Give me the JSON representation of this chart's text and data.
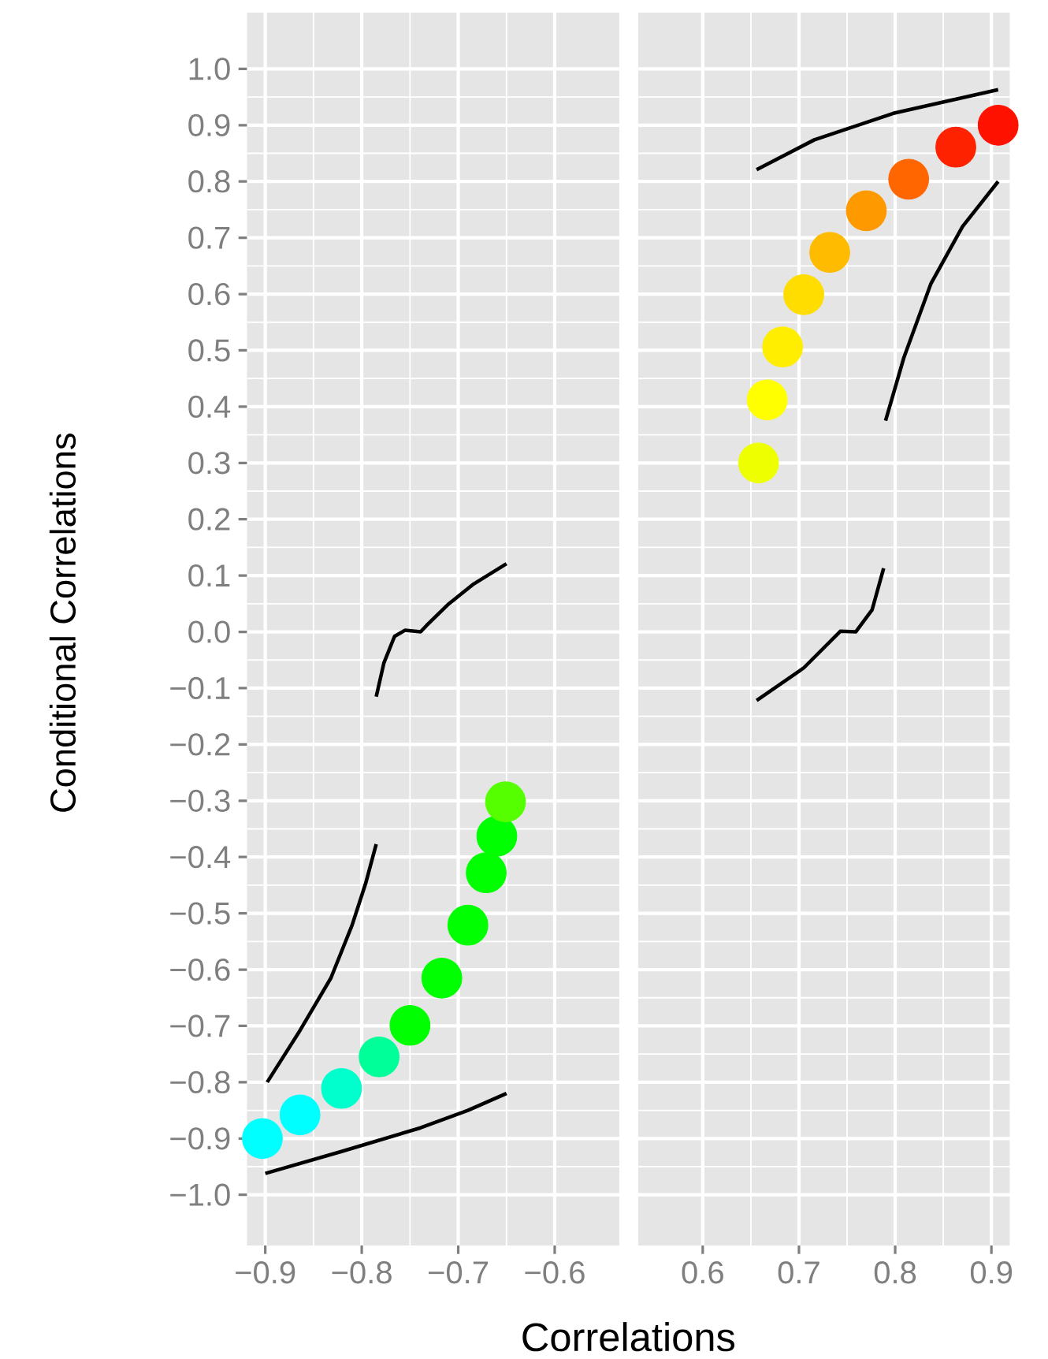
{
  "chart_data": [
    {
      "type": "line",
      "xlabel": "Correlations",
      "ylabel": "Conditional Correlations",
      "xlim": [
        -0.919,
        -0.533
      ],
      "ylim": [
        -1.09,
        1.1
      ],
      "grid": true,
      "xticks": [
        {
          "value": -0.9,
          "label": "−0.9"
        },
        {
          "value": -0.8,
          "label": "−0.8"
        },
        {
          "value": -0.7,
          "label": "−0.7"
        },
        {
          "value": -0.6,
          "label": "−0.6"
        }
      ],
      "yticks": [
        {
          "value": -1.0,
          "label": "−1.0"
        },
        {
          "value": -0.9,
          "label": "−0.9"
        },
        {
          "value": -0.8,
          "label": "−0.8"
        },
        {
          "value": -0.7,
          "label": "−0.7"
        },
        {
          "value": -0.6,
          "label": "−0.6"
        },
        {
          "value": -0.5,
          "label": "−0.5"
        },
        {
          "value": -0.4,
          "label": "−0.4"
        },
        {
          "value": -0.3,
          "label": "−0.3"
        },
        {
          "value": -0.2,
          "label": "−0.2"
        },
        {
          "value": -0.1,
          "label": "−0.1"
        },
        {
          "value": 0.0,
          "label": "0.0"
        },
        {
          "value": 0.1,
          "label": "0.1"
        },
        {
          "value": 0.2,
          "label": "0.2"
        },
        {
          "value": 0.3,
          "label": "0.3"
        },
        {
          "value": 0.4,
          "label": "0.4"
        },
        {
          "value": 0.5,
          "label": "0.5"
        },
        {
          "value": 0.6,
          "label": "0.6"
        },
        {
          "value": 0.7,
          "label": "0.7"
        },
        {
          "value": 0.8,
          "label": "0.8"
        },
        {
          "value": 0.9,
          "label": "0.9"
        },
        {
          "value": 1.0,
          "label": "1.0"
        }
      ],
      "series": [
        {
          "marker": "none",
          "color": "#000000",
          "x": [
            -0.785,
            -0.777,
            -0.766,
            -0.755,
            -0.739,
            -0.733,
            -0.711,
            -0.684,
            -0.65
          ],
          "values": [
            -0.115,
            -0.055,
            -0.008,
            0.003,
            0.0,
            0.011,
            0.048,
            0.085,
            0.121
          ]
        },
        {
          "marker": "none",
          "color": "#000000",
          "x": [
            -0.898,
            -0.864,
            -0.832,
            -0.81,
            -0.796,
            -0.785
          ],
          "values": [
            -0.8,
            -0.708,
            -0.615,
            -0.521,
            -0.447,
            -0.377
          ]
        },
        {
          "marker": "none",
          "color": "#000000",
          "x": [
            -0.9,
            -0.821,
            -0.739,
            -0.69,
            -0.65
          ],
          "values": [
            -0.962,
            -0.923,
            -0.881,
            -0.85,
            -0.82
          ]
        },
        {
          "type": "scatter",
          "marker": "circle",
          "x": [
            -0.903,
            -0.864,
            -0.821,
            -0.782,
            -0.75,
            -0.717,
            -0.69,
            -0.671,
            -0.66,
            -0.651
          ],
          "values": [
            -0.9,
            -0.858,
            -0.811,
            -0.755,
            -0.699,
            -0.615,
            -0.521,
            -0.428,
            -0.363,
            -0.302
          ],
          "colors": [
            "#00ffff",
            "#00ffff",
            "#00ffcc",
            "#00ff99",
            "#00ff00",
            "#00ff00",
            "#00ff00",
            "#00ff00",
            "#00ff00",
            "#55ff00"
          ]
        }
      ]
    },
    {
      "type": "line",
      "xlim": [
        0.533,
        0.919
      ],
      "ylim": [
        -1.09,
        1.1
      ],
      "grid": true,
      "tick_labels": "x",
      "xticks": [
        0.6,
        0.7,
        0.8,
        0.9
      ],
      "yticks": [
        -1.0,
        -0.9,
        -0.8,
        -0.7,
        -0.6,
        -0.5,
        -0.4,
        -0.3,
        -0.2,
        -0.1,
        0.0,
        0.1,
        0.2,
        0.3,
        0.4,
        0.5,
        0.6,
        0.7,
        0.8,
        0.9,
        1.0
      ],
      "series": [
        {
          "marker": "none",
          "color": "#000000",
          "x": [
            0.656,
            0.716,
            0.798,
            0.907
          ],
          "values": [
            0.821,
            0.874,
            0.921,
            0.963
          ]
        },
        {
          "marker": "none",
          "color": "#000000",
          "x": [
            0.79,
            0.809,
            0.837,
            0.87,
            0.907
          ],
          "values": [
            0.375,
            0.487,
            0.618,
            0.72,
            0.8
          ]
        },
        {
          "marker": "none",
          "color": "#000000",
          "x": [
            0.656,
            0.705,
            0.743,
            0.759,
            0.776,
            0.788
          ],
          "values": [
            -0.122,
            -0.064,
            0.001,
            0.0,
            0.039,
            0.113
          ]
        },
        {
          "type": "scatter",
          "marker": "circle",
          "x": [
            0.658,
            0.667,
            0.683,
            0.705,
            0.732,
            0.77,
            0.814,
            0.863,
            0.907
          ],
          "values": [
            0.3,
            0.412,
            0.506,
            0.599,
            0.674,
            0.748,
            0.804,
            0.861,
            0.9
          ],
          "colors": [
            "#eeff00",
            "#ffff00",
            "#ffee00",
            "#ffdd00",
            "#ffbb00",
            "#ff9900",
            "#ff6600",
            "#ff2200",
            "#ff1100"
          ]
        }
      ]
    }
  ]
}
